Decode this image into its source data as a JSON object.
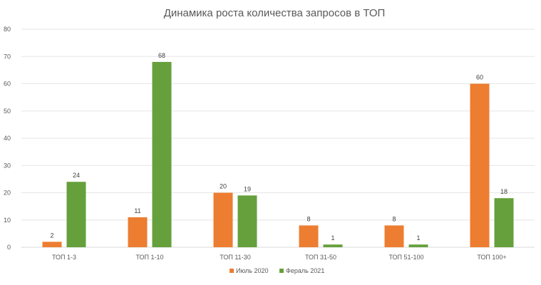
{
  "chart_data": {
    "type": "bar",
    "title": "Динамика роста количества запросов в ТОП",
    "xlabel": "",
    "ylabel": "",
    "categories": [
      "ТОП 1-3",
      "ТОП 1-10",
      "ТОП 11-30",
      "ТОП 31-50",
      "ТОП 51-100",
      "ТОП 100+"
    ],
    "series": [
      {
        "name": "Июль 2020",
        "color": "#ed7d31",
        "values": [
          2,
          11,
          20,
          8,
          8,
          60
        ]
      },
      {
        "name": "Фераль 2021",
        "color": "#66a03c",
        "values": [
          24,
          68,
          19,
          1,
          1,
          18
        ]
      }
    ],
    "ylim": [
      0,
      80
    ],
    "yticks": [
      0,
      10,
      20,
      30,
      40,
      50,
      60,
      70,
      80
    ],
    "grid": true,
    "legend_position": "bottom"
  }
}
